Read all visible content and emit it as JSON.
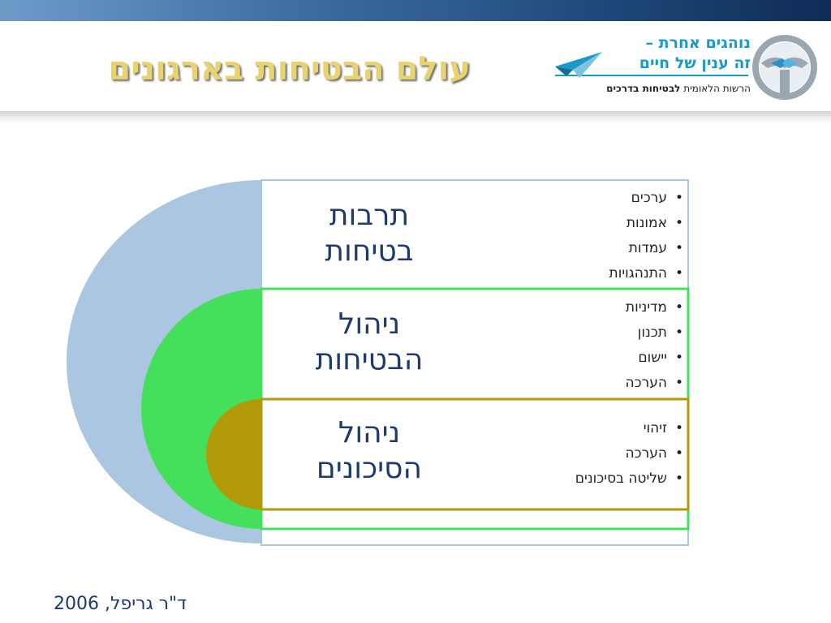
{
  "slide": {
    "title": "עולם הבטיחות בארגונים",
    "logo": {
      "line1": "נוהגים אחרת –",
      "line2": "זה ענין של חיים",
      "line3_regular": "הרשות הלאומית ",
      "line3_bold": "לבטיחות בדרכים",
      "icons": [
        "paper-plane-icon",
        "steering-wheel-handshake-icon"
      ]
    },
    "panels": [
      {
        "title_line1": "תרבות",
        "title_line2": "בטיחות",
        "bullets": [
          "ערכים",
          "אמונות",
          "עמדות",
          "התנהגויות"
        ]
      },
      {
        "title_line1": "ניהול",
        "title_line2": "הבטיחות",
        "bullets": [
          "מדיניות",
          "תכנון",
          "יישום",
          "הערכה"
        ]
      },
      {
        "title_line1": "ניהול",
        "title_line2": "הסיכונים",
        "bullets": [
          "זיהוי",
          "הערכה",
          "שליטה בסיכונים"
        ]
      }
    ],
    "colors": {
      "outer": "#aac6e0",
      "middle": "#45e05b",
      "inner": "#b29a0a",
      "title_gold": "#e8d36e",
      "text_navy": "#1f3a6e"
    },
    "footer": "ד\"ר גריפל, 2006"
  }
}
